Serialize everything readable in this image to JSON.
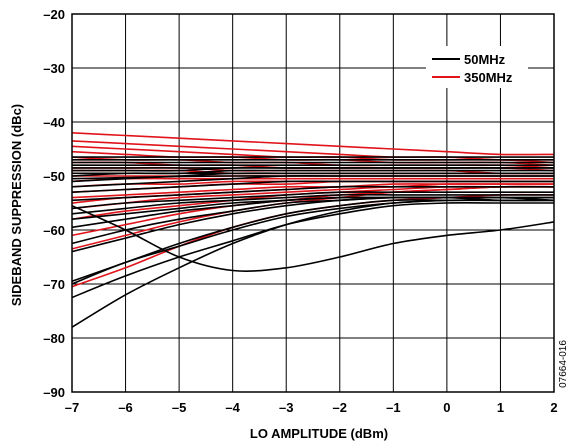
{
  "chart_data": {
    "type": "line",
    "title": "",
    "xlabel": "LO AMPLITUDE (dBm)",
    "ylabel": "SIDEBAND SUPPRESSION (dBc)",
    "xlim": [
      -7,
      2
    ],
    "ylim": [
      -90,
      -20
    ],
    "xticks": [
      -7,
      -6,
      -5,
      -4,
      -3,
      -2,
      -1,
      0,
      1,
      2
    ],
    "yticks": [
      -20,
      -30,
      -40,
      -50,
      -60,
      -70,
      -80,
      -90
    ],
    "xtick_labels": [
      "–7",
      "–6",
      "–5",
      "–4",
      "–3",
      "–2",
      "–1",
      "0",
      "1",
      "2"
    ],
    "ytick_labels": [
      "–20",
      "–30",
      "–40",
      "–50",
      "–60",
      "–70",
      "–80",
      "–90"
    ],
    "grid": true,
    "legend_position": "top-right",
    "figure_code": "07664-016",
    "x": [
      -7,
      -6,
      -5,
      -4,
      -3,
      -2,
      -1,
      0,
      1,
      2
    ],
    "series": [
      {
        "name": "50MHz",
        "color": "#000000",
        "curves": [
          [
            -78,
            -72,
            -67,
            -62.5,
            -59,
            -56.5,
            -55,
            -54.5,
            -54.5,
            -54.5
          ],
          [
            -72.5,
            -68.5,
            -65,
            -62,
            -59,
            -57,
            -55.5,
            -55,
            -55,
            -55
          ],
          [
            -70,
            -66,
            -63,
            -60,
            -57.5,
            -56,
            -55,
            -54.5,
            -54.5,
            -54.5
          ],
          [
            -69.5,
            -66,
            -62.5,
            -59.5,
            -57,
            -55.5,
            -54.5,
            -54.5,
            -54.5,
            -54.5
          ],
          [
            -55.5,
            -60,
            -65,
            -67.5,
            -67,
            -65,
            -62.5,
            -61,
            -60,
            -58.5
          ],
          [
            -64,
            -61.5,
            -59,
            -57,
            -55.5,
            -54.5,
            -54,
            -54,
            -54,
            -54
          ],
          [
            -62.5,
            -60,
            -58,
            -56.5,
            -55,
            -54.5,
            -54,
            -54,
            -54,
            -54
          ],
          [
            -59.5,
            -58,
            -56.5,
            -55.5,
            -54.5,
            -54,
            -54,
            -54,
            -54,
            -54.5
          ],
          [
            -58,
            -57,
            -56,
            -55,
            -54.5,
            -54,
            -54,
            -54,
            -54.5,
            -54.5
          ],
          [
            -57,
            -56,
            -55,
            -54.5,
            -54,
            -53.5,
            -53.5,
            -53.5,
            -53.5,
            -53.5
          ],
          [
            -56,
            -55,
            -54.5,
            -54,
            -53.5,
            -53,
            -53,
            -53,
            -53,
            -53
          ],
          [
            -54.5,
            -54,
            -53.5,
            -53,
            -52.5,
            -52,
            -52,
            -52,
            -52,
            -52
          ],
          [
            -53,
            -52.5,
            -52,
            -51.5,
            -51,
            -51,
            -51,
            -51,
            -51,
            -51
          ],
          [
            -52,
            -51.5,
            -51,
            -50.5,
            -50,
            -50,
            -50,
            -50,
            -50,
            -50
          ],
          [
            -51,
            -50.5,
            -50,
            -49.5,
            -49.5,
            -49.5,
            -49.5,
            -49.5,
            -49.5,
            -49.5
          ],
          [
            -50,
            -49.5,
            -49.5,
            -49,
            -49,
            -49,
            -49,
            -49,
            -49,
            -49
          ],
          [
            -49,
            -49,
            -49,
            -48.5,
            -48.5,
            -48.5,
            -48.5,
            -48.5,
            -48.5,
            -48.5
          ],
          [
            -48,
            -48,
            -48,
            -48,
            -48,
            -48,
            -48,
            -48,
            -48,
            -48
          ],
          [
            -47.5,
            -47.5,
            -47.5,
            -47.5,
            -47.5,
            -47.5,
            -47.5,
            -47.5,
            -47.5,
            -47.5
          ],
          [
            -46.5,
            -46.5,
            -46.5,
            -46.5,
            -46.5,
            -46.5,
            -46.5,
            -46.5,
            -46.5,
            -46.5
          ],
          [
            -50.5,
            -50.3,
            -50.1,
            -50,
            -50,
            -50,
            -50,
            -50,
            -50,
            -50
          ],
          [
            -49.5,
            -49.5,
            -49.5,
            -49.5,
            -49.5,
            -49.5,
            -49.5,
            -49.5,
            -49.5,
            -49.5
          ],
          [
            -48.5,
            -48.5,
            -48.5,
            -48.5,
            -48.5,
            -48.5,
            -48.5,
            -48.5,
            -48.5,
            -48.5
          ],
          [
            -47,
            -47,
            -47,
            -47,
            -47,
            -47,
            -47,
            -47,
            -47,
            -47
          ]
        ]
      },
      {
        "name": "350MHz",
        "color": "#e0151b",
        "curves": [
          [
            -42,
            -42.5,
            -43,
            -43.5,
            -44,
            -44.5,
            -45,
            -45.5,
            -46,
            -46
          ],
          [
            -43.5,
            -44,
            -44.5,
            -45,
            -45.5,
            -46,
            -46.5,
            -46.5,
            -47,
            -47
          ],
          [
            -44.5,
            -45,
            -45.5,
            -46,
            -46.5,
            -46.5,
            -47,
            -47,
            -47,
            -47.5
          ],
          [
            -45.5,
            -46,
            -46.5,
            -46.5,
            -47,
            -47,
            -47.5,
            -47.5,
            -47.5,
            -48
          ],
          [
            -46.5,
            -47,
            -47,
            -47.5,
            -47.5,
            -48,
            -48,
            -48,
            -48,
            -48.5
          ],
          [
            -47.5,
            -47.5,
            -48,
            -48,
            -48.5,
            -48.5,
            -48.5,
            -48.5,
            -48.5,
            -49
          ],
          [
            -48.5,
            -48.5,
            -48.5,
            -49,
            -49,
            -49,
            -49,
            -49,
            -49.5,
            -49.5
          ],
          [
            -49,
            -49,
            -49,
            -49.5,
            -49.5,
            -49.5,
            -49.5,
            -49.5,
            -49.5,
            -49.5
          ],
          [
            -50,
            -50,
            -50,
            -50,
            -50,
            -50,
            -50,
            -50,
            -50,
            -50
          ],
          [
            -51,
            -50.5,
            -50.5,
            -50.5,
            -50.5,
            -50.5,
            -50.5,
            -50.5,
            -50.5,
            -50.5
          ],
          [
            -52,
            -51.5,
            -51.5,
            -51,
            -51,
            -51,
            -51,
            -51,
            -51,
            -51
          ],
          [
            -53,
            -52.5,
            -52,
            -51.5,
            -51.5,
            -51,
            -51,
            -51,
            -51,
            -51
          ],
          [
            -54,
            -53.5,
            -53,
            -52.5,
            -52,
            -52,
            -51.5,
            -51.5,
            -51.5,
            -51.5
          ],
          [
            -55,
            -54,
            -53.5,
            -53,
            -52.5,
            -52,
            -52,
            -51.5,
            -51.5,
            -51.5
          ],
          [
            -56,
            -55,
            -54,
            -53.5,
            -53,
            -52.5,
            -52,
            -52,
            -52,
            -52
          ],
          [
            -58,
            -56.5,
            -55.5,
            -54.5,
            -53.5,
            -53,
            -52.5,
            -52,
            -52,
            -52
          ],
          [
            -61,
            -59,
            -57,
            -55.5,
            -54.5,
            -53.5,
            -53,
            -52.5,
            -52,
            -52
          ],
          [
            -63.5,
            -61,
            -58.5,
            -56.5,
            -55,
            -54,
            -53,
            -52.5,
            -52,
            -52
          ],
          [
            -70.5,
            -67,
            -63,
            -59.5,
            -57,
            -55.5,
            -54.5,
            -54,
            -53.5,
            -53.5
          ]
        ]
      }
    ]
  }
}
